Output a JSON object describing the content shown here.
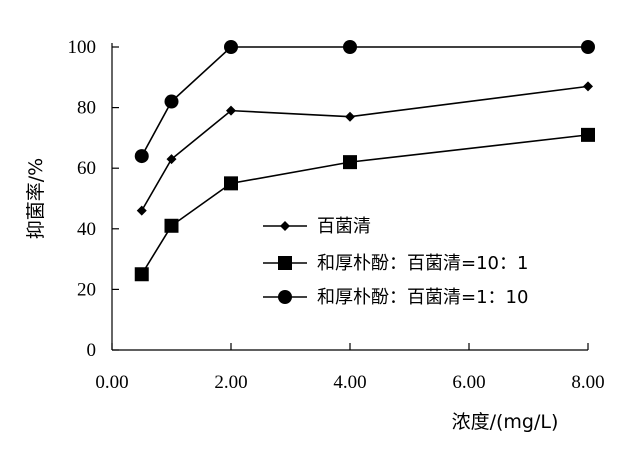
{
  "chart_data": {
    "type": "line",
    "ylabel": "抑菌率/%",
    "xlabel": "浓度/(mg/L)",
    "xlim": [
      0,
      8
    ],
    "ylim": [
      0,
      100
    ],
    "x_ticks": [
      "0.00",
      "2.00",
      "4.00",
      "6.00",
      "8.00"
    ],
    "y_ticks": [
      "0",
      "20",
      "40",
      "60",
      "80",
      "100"
    ],
    "grid": false,
    "legend_position": "center-right",
    "series": [
      {
        "name": "百菌清",
        "marker": "diamond",
        "x": [
          0.5,
          1.0,
          2.0,
          4.0,
          8.0
        ],
        "y": [
          46,
          63,
          79,
          77,
          87
        ]
      },
      {
        "name": "和厚朴酚：百菌清=10：1",
        "marker": "square",
        "x": [
          0.5,
          1.0,
          2.0,
          4.0,
          8.0
        ],
        "y": [
          25,
          41,
          55,
          62,
          71
        ]
      },
      {
        "name": "和厚朴酚：百菌清=1：10",
        "marker": "circle",
        "x": [
          0.5,
          1.0,
          2.0,
          4.0,
          8.0
        ],
        "y": [
          64,
          82,
          100,
          100,
          100
        ]
      }
    ],
    "colors": {
      "line": "#000000",
      "marker": "#000000"
    }
  }
}
